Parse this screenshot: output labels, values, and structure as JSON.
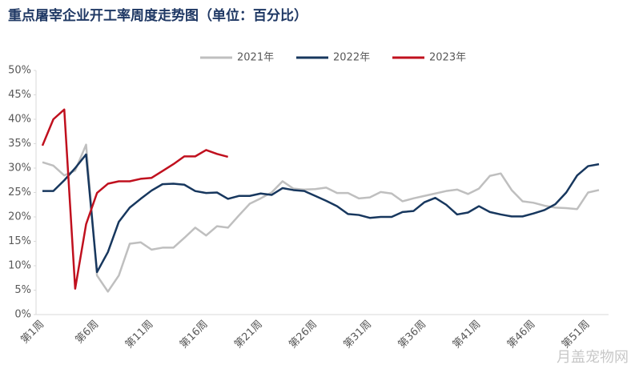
{
  "chart_data": {
    "type": "line",
    "title": "重点屠宰企业开工率周度走势图（单位：百分比）",
    "categories": [
      "第1周",
      null,
      null,
      null,
      null,
      "第6周",
      null,
      null,
      null,
      null,
      "第11周",
      null,
      null,
      null,
      null,
      "第16周",
      null,
      null,
      null,
      null,
      "第21周",
      null,
      null,
      null,
      null,
      "第26周",
      null,
      null,
      null,
      null,
      "第31周",
      null,
      null,
      null,
      null,
      "第36周",
      null,
      null,
      null,
      null,
      "第41周",
      null,
      null,
      null,
      null,
      "第46周",
      null,
      null,
      null,
      null,
      "第51周",
      null
    ],
    "series": [
      {
        "name": "2021年",
        "color": "#bfbfbf",
        "values": [
          31.2,
          30.5,
          28.5,
          29.5,
          34.8,
          8,
          4.7,
          8,
          14.5,
          14.8,
          13.3,
          13.7,
          13.7,
          15.7,
          17.8,
          16.2,
          18.1,
          17.8,
          20.3,
          22.7,
          23.8,
          25,
          27.3,
          25.8,
          25.6,
          25.7,
          26,
          24.9,
          24.9,
          23.8,
          24,
          25.1,
          24.8,
          23.2,
          23.8,
          24.3,
          24.8,
          25.3,
          25.6,
          24.7,
          25.8,
          28.4,
          28.9,
          25.5,
          23.2,
          22.9,
          22.3,
          21.9,
          21.8,
          21.6,
          25,
          25.5
        ]
      },
      {
        "name": "2022年",
        "color": "#17375e",
        "values": [
          25.3,
          25.3,
          27.5,
          30,
          32.8,
          8.7,
          12.8,
          19,
          21.9,
          23.7,
          25.4,
          26.7,
          26.8,
          26.6,
          25.3,
          24.9,
          25,
          23.7,
          24.3,
          24.3,
          24.8,
          24.5,
          25.9,
          25.5,
          25.3,
          24.3,
          23.3,
          22.2,
          20.6,
          20.4,
          19.8,
          20,
          20,
          21,
          21.2,
          23,
          23.9,
          22.5,
          20.5,
          20.9,
          22.2,
          21,
          20.5,
          20.1,
          20.1,
          20.7,
          21.4,
          22.6,
          25,
          28.5,
          30.4,
          30.8
        ]
      },
      {
        "name": "2023年",
        "color": "#c0101e",
        "values": [
          34.6,
          40,
          42,
          5.3,
          18.5,
          24.9,
          26.8,
          27.3,
          27.3,
          27.8,
          28,
          29.4,
          30.8,
          32.4,
          32.4,
          33.7,
          32.9,
          32.3,
          null,
          null,
          null,
          null,
          null,
          null,
          null,
          null,
          null,
          null,
          null,
          null,
          null,
          null,
          null,
          null,
          null,
          null,
          null,
          null,
          null,
          null,
          null,
          null,
          null,
          null,
          null,
          null,
          null,
          null,
          null,
          null,
          null,
          null
        ]
      }
    ],
    "ylim": [
      0,
      50
    ],
    "yticks": [
      {
        "value": 0,
        "label": "0%"
      },
      {
        "value": 5,
        "label": "5%"
      },
      {
        "value": 10,
        "label": "10%"
      },
      {
        "value": 15,
        "label": "15%"
      },
      {
        "value": 20,
        "label": "20%"
      },
      {
        "value": 25,
        "label": "25%"
      },
      {
        "value": 30,
        "label": "30%"
      },
      {
        "value": 35,
        "label": "35%"
      },
      {
        "value": 40,
        "label": "40%"
      },
      {
        "value": 45,
        "label": "45%"
      },
      {
        "value": 50,
        "label": "50%"
      }
    ],
    "grid": false,
    "legend": "top"
  },
  "watermark": "月盖宠物网"
}
